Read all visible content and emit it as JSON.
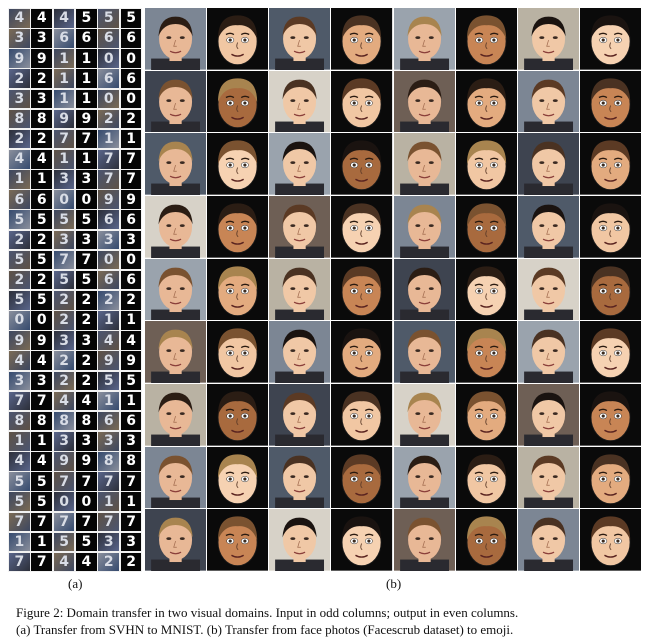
{
  "panel_a": {
    "label": "(a)",
    "digit_rows": [
      [
        "4",
        "4",
        "4",
        "5",
        "5",
        "5"
      ],
      [
        "3",
        "3",
        "6",
        "6",
        "6",
        "6"
      ],
      [
        "9",
        "9",
        "1",
        "1",
        "0",
        "0"
      ],
      [
        "2",
        "2",
        "1",
        "1",
        "6",
        "6"
      ],
      [
        "3",
        "3",
        "1",
        "1",
        "0",
        "0"
      ],
      [
        "8",
        "8",
        "9",
        "9",
        "2",
        "2"
      ],
      [
        "2",
        "2",
        "7",
        "7",
        "1",
        "1"
      ],
      [
        "4",
        "4",
        "1",
        "1",
        "7",
        "7"
      ],
      [
        "1",
        "1",
        "3",
        "3",
        "7",
        "7"
      ],
      [
        "6",
        "6",
        "0",
        "0",
        "9",
        "9"
      ],
      [
        "5",
        "5",
        "5",
        "5",
        "6",
        "6"
      ],
      [
        "2",
        "2",
        "3",
        "3",
        "3",
        "3"
      ],
      [
        "5",
        "5",
        "7",
        "7",
        "0",
        "0"
      ],
      [
        "2",
        "2",
        "5",
        "5",
        "6",
        "6"
      ],
      [
        "5",
        "5",
        "2",
        "2",
        "2",
        "2"
      ],
      [
        "0",
        "0",
        "2",
        "2",
        "1",
        "1"
      ],
      [
        "9",
        "9",
        "3",
        "3",
        "4",
        "4"
      ],
      [
        "4",
        "4",
        "2",
        "2",
        "9",
        "9"
      ],
      [
        "3",
        "3",
        "2",
        "2",
        "5",
        "5"
      ],
      [
        "7",
        "7",
        "4",
        "4",
        "1",
        "1"
      ],
      [
        "8",
        "8",
        "8",
        "8",
        "6",
        "6"
      ],
      [
        "1",
        "1",
        "3",
        "3",
        "3",
        "3"
      ],
      [
        "4",
        "4",
        "9",
        "9",
        "8",
        "8"
      ],
      [
        "5",
        "5",
        "7",
        "7",
        "7",
        "7"
      ],
      [
        "5",
        "5",
        "0",
        "0",
        "1",
        "1"
      ],
      [
        "7",
        "7",
        "7",
        "7",
        "7",
        "7"
      ],
      [
        "1",
        "1",
        "5",
        "5",
        "3",
        "3"
      ],
      [
        "7",
        "7",
        "4",
        "4",
        "2",
        "2"
      ]
    ],
    "svhn_colors": [
      "#3d4760",
      "#59658a",
      "#2c2f3a",
      "#7a6a55",
      "#4b5570",
      "#8a8f9c",
      "#354a6e",
      "#5e5246"
    ]
  },
  "panel_b": {
    "label": "(b)",
    "skin_tones": [
      "#e8b896",
      "#d9a07c",
      "#c78d6a",
      "#f0c8a6",
      "#b87a57",
      "#e2b08e"
    ],
    "emoji_skin_tones": [
      "#f1c7a3",
      "#e3ab7f",
      "#c88555",
      "#f6d2b2",
      "#a86a3e"
    ],
    "hair_colors": [
      "#2b1d14",
      "#4a3222",
      "#7a5230",
      "#1a1310",
      "#a8844f",
      "#5b3a24"
    ],
    "photo_backgrounds": [
      "#7c8694",
      "#4f5a69",
      "#9aa3ad",
      "#b9b2a3",
      "#3e4450",
      "#d7d2c8",
      "#6e5f55"
    ]
  },
  "caption": {
    "line1": "Figure 2: Domain transfer in two visual domains. Input in odd columns; output in even columns.",
    "line2": "(a) Transfer from SVHN to MNIST. (b) Transfer from face photos (Facescrub dataset) to emoji."
  }
}
